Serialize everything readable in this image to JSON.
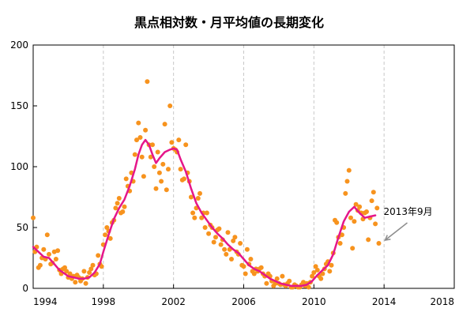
{
  "chart_data": {
    "type": "scatter",
    "title": "黒点相対数・月平均値の長期変化",
    "xlabel": "",
    "ylabel": "",
    "xlim": [
      1994,
      2018
    ],
    "ylim": [
      0,
      200
    ],
    "x_ticks": [
      1994,
      1998,
      2002,
      2006,
      2010,
      2014,
      2018
    ],
    "y_ticks": [
      0,
      50,
      100,
      150,
      200
    ],
    "x_tick_labels": [
      "1994",
      "1998",
      "2002",
      "2006",
      "2010",
      "2014",
      "2018"
    ],
    "y_tick_labels": [
      "0",
      "50",
      "100",
      "150",
      "200"
    ],
    "grid": "vertical dashed at x ticks",
    "colors": {
      "monthly": "#f7931e",
      "smoothed": "#e5168a",
      "grid": "#c8c8c8",
      "axis": "#000000",
      "annotation_arrow": "#8c8c8c"
    },
    "annotation": {
      "text": "2013年9月",
      "x": 2013.7,
      "y": 37
    },
    "series": [
      {
        "kind": "monthly",
        "points": [
          [
            1994.0,
            58
          ],
          [
            1994.1,
            30
          ],
          [
            1994.2,
            34
          ],
          [
            1994.3,
            17
          ],
          [
            1994.4,
            19
          ],
          [
            1994.5,
            25
          ],
          [
            1994.6,
            32
          ],
          [
            1994.7,
            24
          ],
          [
            1994.8,
            44
          ],
          [
            1994.9,
            28
          ],
          [
            1995.0,
            20
          ],
          [
            1995.1,
            21
          ],
          [
            1995.2,
            30
          ],
          [
            1995.3,
            24
          ],
          [
            1995.4,
            31
          ],
          [
            1995.5,
            15
          ],
          [
            1995.6,
            12
          ],
          [
            1995.7,
            16
          ],
          [
            1995.8,
            17
          ],
          [
            1995.9,
            14
          ],
          [
            1996.0,
            9
          ],
          [
            1996.1,
            12
          ],
          [
            1996.2,
            8
          ],
          [
            1996.3,
            10
          ],
          [
            1996.4,
            5
          ],
          [
            1996.5,
            11
          ],
          [
            1996.6,
            9
          ],
          [
            1996.7,
            6
          ],
          [
            1996.8,
            8
          ],
          [
            1996.9,
            14
          ],
          [
            1997.0,
            4
          ],
          [
            1997.1,
            9
          ],
          [
            1997.2,
            13
          ],
          [
            1997.3,
            16
          ],
          [
            1997.4,
            19
          ],
          [
            1997.5,
            11
          ],
          [
            1997.6,
            12
          ],
          [
            1997.7,
            27
          ],
          [
            1997.8,
            20
          ],
          [
            1997.9,
            18
          ],
          [
            1998.0,
            36
          ],
          [
            1998.1,
            44
          ],
          [
            1998.2,
            50
          ],
          [
            1998.3,
            47
          ],
          [
            1998.4,
            41
          ],
          [
            1998.5,
            54
          ],
          [
            1998.6,
            56
          ],
          [
            1998.7,
            66
          ],
          [
            1998.8,
            70
          ],
          [
            1998.9,
            74
          ],
          [
            1999.0,
            62
          ],
          [
            1999.1,
            63
          ],
          [
            1999.2,
            67
          ],
          [
            1999.3,
            90
          ],
          [
            1999.4,
            84
          ],
          [
            1999.5,
            80
          ],
          [
            1999.6,
            95
          ],
          [
            1999.7,
            88
          ],
          [
            1999.8,
            110
          ],
          [
            1999.9,
            122
          ],
          [
            2000.0,
            136
          ],
          [
            2000.1,
            124
          ],
          [
            2000.2,
            108
          ],
          [
            2000.3,
            92
          ],
          [
            2000.4,
            130
          ],
          [
            2000.5,
            170
          ],
          [
            2000.6,
            118
          ],
          [
            2000.7,
            108
          ],
          [
            2000.8,
            118
          ],
          [
            2000.9,
            100
          ],
          [
            2001.0,
            82
          ],
          [
            2001.1,
            112
          ],
          [
            2001.2,
            95
          ],
          [
            2001.3,
            88
          ],
          [
            2001.4,
            102
          ],
          [
            2001.5,
            135
          ],
          [
            2001.6,
            81
          ],
          [
            2001.7,
            98
          ],
          [
            2001.8,
            150
          ],
          [
            2001.9,
            120
          ],
          [
            2002.0,
            115
          ],
          [
            2002.1,
            114
          ],
          [
            2002.2,
            112
          ],
          [
            2002.3,
            122
          ],
          [
            2002.4,
            98
          ],
          [
            2002.5,
            89
          ],
          [
            2002.6,
            90
          ],
          [
            2002.7,
            118
          ],
          [
            2002.8,
            95
          ],
          [
            2002.9,
            88
          ],
          [
            2003.0,
            75
          ],
          [
            2003.1,
            62
          ],
          [
            2003.2,
            58
          ],
          [
            2003.3,
            66
          ],
          [
            2003.4,
            74
          ],
          [
            2003.5,
            78
          ],
          [
            2003.6,
            58
          ],
          [
            2003.7,
            62
          ],
          [
            2003.8,
            50
          ],
          [
            2003.9,
            62
          ],
          [
            2004.0,
            45
          ],
          [
            2004.1,
            52
          ],
          [
            2004.2,
            50
          ],
          [
            2004.3,
            38
          ],
          [
            2004.4,
            42
          ],
          [
            2004.5,
            48
          ],
          [
            2004.6,
            49
          ],
          [
            2004.7,
            36
          ],
          [
            2004.8,
            40
          ],
          [
            2004.9,
            32
          ],
          [
            2005.0,
            28
          ],
          [
            2005.1,
            46
          ],
          [
            2005.2,
            32
          ],
          [
            2005.3,
            24
          ],
          [
            2005.4,
            39
          ],
          [
            2005.5,
            42
          ],
          [
            2005.6,
            30
          ],
          [
            2005.7,
            28
          ],
          [
            2005.8,
            37
          ],
          [
            2005.9,
            19
          ],
          [
            2006.0,
            18
          ],
          [
            2006.1,
            12
          ],
          [
            2006.2,
            32
          ],
          [
            2006.3,
            20
          ],
          [
            2006.4,
            24
          ],
          [
            2006.5,
            14
          ],
          [
            2006.6,
            12
          ],
          [
            2006.7,
            16
          ],
          [
            2006.8,
            14
          ],
          [
            2006.9,
            16
          ],
          [
            2007.0,
            17
          ],
          [
            2007.1,
            12
          ],
          [
            2007.2,
            10
          ],
          [
            2007.3,
            4
          ],
          [
            2007.4,
            12
          ],
          [
            2007.5,
            10
          ],
          [
            2007.6,
            6
          ],
          [
            2007.7,
            2
          ],
          [
            2007.8,
            4
          ],
          [
            2007.9,
            8
          ],
          [
            2008.0,
            4
          ],
          [
            2008.1,
            3
          ],
          [
            2008.2,
            10
          ],
          [
            2008.3,
            3
          ],
          [
            2008.4,
            2
          ],
          [
            2008.5,
            4
          ],
          [
            2008.6,
            6
          ],
          [
            2008.7,
            1
          ],
          [
            2008.8,
            1
          ],
          [
            2008.9,
            3
          ],
          [
            2009.0,
            2
          ],
          [
            2009.1,
            1
          ],
          [
            2009.2,
            1
          ],
          [
            2009.3,
            3
          ],
          [
            2009.4,
            5
          ],
          [
            2009.5,
            2
          ],
          [
            2009.6,
            4
          ],
          [
            2009.7,
            1
          ],
          [
            2009.8,
            5
          ],
          [
            2009.9,
            10
          ],
          [
            2010.0,
            13
          ],
          [
            2010.1,
            18
          ],
          [
            2010.2,
            15
          ],
          [
            2010.3,
            10
          ],
          [
            2010.4,
            8
          ],
          [
            2010.5,
            12
          ],
          [
            2010.6,
            16
          ],
          [
            2010.7,
            20
          ],
          [
            2010.8,
            22
          ],
          [
            2010.9,
            14
          ],
          [
            2011.0,
            19
          ],
          [
            2011.1,
            29
          ],
          [
            2011.2,
            56
          ],
          [
            2011.3,
            54
          ],
          [
            2011.4,
            42
          ],
          [
            2011.5,
            37
          ],
          [
            2011.6,
            44
          ],
          [
            2011.7,
            50
          ],
          [
            2011.8,
            78
          ],
          [
            2011.9,
            88
          ],
          [
            2012.0,
            97
          ],
          [
            2012.1,
            58
          ],
          [
            2012.2,
            33
          ],
          [
            2012.3,
            55
          ],
          [
            2012.4,
            69
          ],
          [
            2012.5,
            64
          ],
          [
            2012.6,
            67
          ],
          [
            2012.7,
            62
          ],
          [
            2012.8,
            57
          ],
          [
            2012.9,
            62
          ],
          [
            2013.0,
            63
          ],
          [
            2013.1,
            40
          ],
          [
            2013.2,
            58
          ],
          [
            2013.3,
            72
          ],
          [
            2013.4,
            79
          ],
          [
            2013.5,
            53
          ],
          [
            2013.6,
            66
          ],
          [
            2013.7,
            37
          ]
        ]
      },
      {
        "kind": "smoothed",
        "points": [
          [
            1994.0,
            34
          ],
          [
            1994.3,
            30
          ],
          [
            1994.6,
            26
          ],
          [
            1994.9,
            25
          ],
          [
            1995.2,
            20
          ],
          [
            1995.5,
            15
          ],
          [
            1995.8,
            12
          ],
          [
            1996.0,
            10
          ],
          [
            1996.3,
            9
          ],
          [
            1996.6,
            8
          ],
          [
            1996.9,
            8
          ],
          [
            1997.2,
            9
          ],
          [
            1997.5,
            13
          ],
          [
            1997.8,
            20
          ],
          [
            1998.0,
            30
          ],
          [
            1998.3,
            44
          ],
          [
            1998.6,
            57
          ],
          [
            1998.9,
            66
          ],
          [
            1999.2,
            73
          ],
          [
            1999.5,
            84
          ],
          [
            1999.8,
            98
          ],
          [
            2000.0,
            110
          ],
          [
            2000.2,
            118
          ],
          [
            2000.4,
            122
          ],
          [
            2000.6,
            118
          ],
          [
            2000.8,
            110
          ],
          [
            2001.0,
            103
          ],
          [
            2001.2,
            107
          ],
          [
            2001.5,
            112
          ],
          [
            2001.8,
            114
          ],
          [
            2002.0,
            115
          ],
          [
            2002.2,
            114
          ],
          [
            2002.4,
            106
          ],
          [
            2002.7,
            96
          ],
          [
            2003.0,
            82
          ],
          [
            2003.3,
            70
          ],
          [
            2003.6,
            62
          ],
          [
            2003.9,
            56
          ],
          [
            2004.2,
            50
          ],
          [
            2004.5,
            45
          ],
          [
            2004.8,
            41
          ],
          [
            2005.1,
            36
          ],
          [
            2005.4,
            32
          ],
          [
            2005.7,
            29
          ],
          [
            2006.0,
            24
          ],
          [
            2006.3,
            19
          ],
          [
            2006.6,
            16
          ],
          [
            2006.9,
            14
          ],
          [
            2007.2,
            11
          ],
          [
            2007.5,
            8
          ],
          [
            2007.8,
            6
          ],
          [
            2008.1,
            4
          ],
          [
            2008.4,
            3
          ],
          [
            2008.7,
            2
          ],
          [
            2009.0,
            2
          ],
          [
            2009.3,
            2
          ],
          [
            2009.6,
            3
          ],
          [
            2009.9,
            6
          ],
          [
            2010.2,
            11
          ],
          [
            2010.5,
            15
          ],
          [
            2010.8,
            19
          ],
          [
            2011.1,
            28
          ],
          [
            2011.4,
            42
          ],
          [
            2011.7,
            55
          ],
          [
            2012.0,
            63
          ],
          [
            2012.3,
            67
          ],
          [
            2012.6,
            62
          ],
          [
            2012.9,
            58
          ],
          [
            2013.2,
            59
          ],
          [
            2013.5,
            60
          ]
        ]
      }
    ]
  }
}
